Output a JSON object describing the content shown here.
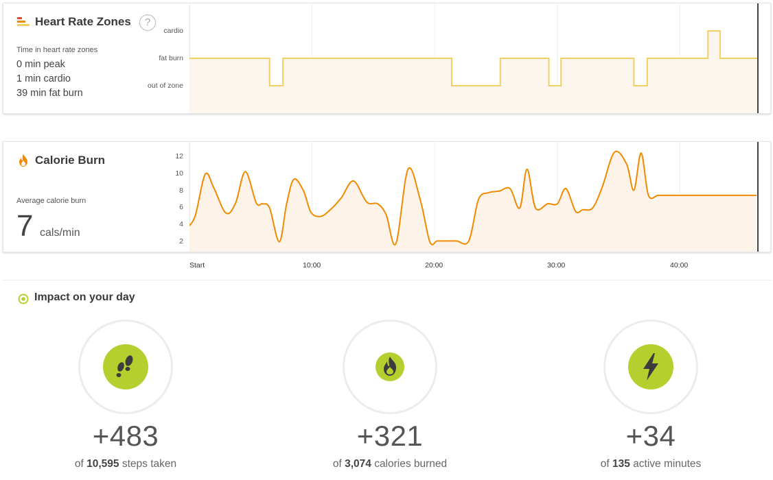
{
  "heart_rate": {
    "title": "Heart Rate Zones",
    "help_label": "?",
    "subtitle": "Time in heart rate zones",
    "stats": [
      "0 min peak",
      "1 min cardio",
      "39 min fat burn"
    ],
    "zone_labels": [
      "cardio",
      "fat burn",
      "out of zone"
    ],
    "series_color": "#f1cf63"
  },
  "calorie": {
    "title": "Calorie Burn",
    "subtitle": "Average calorie burn",
    "value": "7",
    "unit": "cals/min",
    "series_color": "#f08a00"
  },
  "x_axis": {
    "ticks": [
      "Start",
      "10:00",
      "20:00",
      "30:00",
      "40:00"
    ]
  },
  "impact": {
    "title": "Impact on your day",
    "items": [
      {
        "value": "+483",
        "prefix": "of",
        "total": "10,595",
        "suffix": "steps taken",
        "icon": "footsteps-icon"
      },
      {
        "value": "+321",
        "prefix": "of",
        "total": "3,074",
        "suffix": "calories burned",
        "icon": "flame-icon"
      },
      {
        "value": "+34",
        "prefix": "of",
        "total": "135",
        "suffix": "active minutes",
        "icon": "lightning-icon"
      }
    ],
    "accent_color": "#b5cf2e"
  },
  "chart_data": [
    {
      "type": "line",
      "title": "Heart Rate Zones",
      "x_unit": "minutes",
      "y_categories": [
        "out of zone",
        "fat burn",
        "cardio"
      ],
      "step": true,
      "x": [
        0,
        6.6,
        7.7,
        21.6,
        25.6,
        29.6,
        30.6,
        36.6,
        37.7,
        42.7,
        43.7,
        46.7
      ],
      "values": [
        "fat burn",
        "out of zone",
        "fat burn",
        "out of zone",
        "fat burn",
        "out of zone",
        "fat burn",
        "out of zone",
        "fat burn",
        "cardio",
        "fat burn",
        "fat burn"
      ],
      "xlim": [
        0,
        46.7
      ]
    },
    {
      "type": "area",
      "title": "Calorie Burn",
      "x_unit": "minutes",
      "ylim": [
        1,
        13
      ],
      "yticks": [
        2,
        4,
        6,
        8,
        10,
        12
      ],
      "xticks": [
        "Start",
        "10:00",
        "20:00",
        "30:00",
        "40:00"
      ],
      "x": [
        0,
        0.5,
        1.3,
        2.0,
        3.0,
        3.8,
        4.6,
        5.5,
        6.0,
        6.6,
        7.4,
        8.0,
        8.6,
        9.4,
        10.0,
        10.8,
        11.6,
        12.5,
        13.5,
        14.6,
        15.5,
        16.2,
        17.0,
        18.0,
        19.0,
        19.8,
        20.4,
        21.2,
        22.0,
        23.0,
        23.8,
        24.6,
        25.5,
        26.4,
        27.2,
        27.8,
        28.5,
        29.5,
        30.3,
        31.0,
        31.8,
        32.4,
        33.2,
        34.0,
        35.0,
        36.0,
        36.6,
        37.2,
        37.8,
        38.6,
        39.5,
        40.3,
        41.2,
        41.7,
        42.2,
        43.0,
        43.8,
        44.4,
        44.9,
        45.5,
        46.0,
        46.7
      ],
      "values": [
        3.9,
        5.2,
        10.0,
        8.4,
        5.4,
        6.6,
        10.3,
        6.6,
        6.5,
        6.0,
        2.0,
        6.5,
        9.4,
        8.0,
        5.5,
        5.0,
        5.8,
        7.2,
        9.2,
        6.7,
        6.5,
        5.2,
        1.8,
        10.6,
        7.0,
        2.0,
        2.1,
        2.1,
        2.1,
        2.1,
        7.0,
        7.8,
        8.0,
        8.3,
        6.0,
        10.6,
        6.0,
        6.5,
        6.5,
        8.3,
        5.6,
        5.8,
        6.0,
        8.5,
        12.6,
        11.2,
        8.1,
        12.5,
        7.5,
        7.5,
        7.5,
        7.5,
        7.5,
        7.5,
        7.5,
        7.5,
        7.5,
        7.5,
        7.5,
        7.5,
        7.5,
        7.5
      ]
    }
  ]
}
